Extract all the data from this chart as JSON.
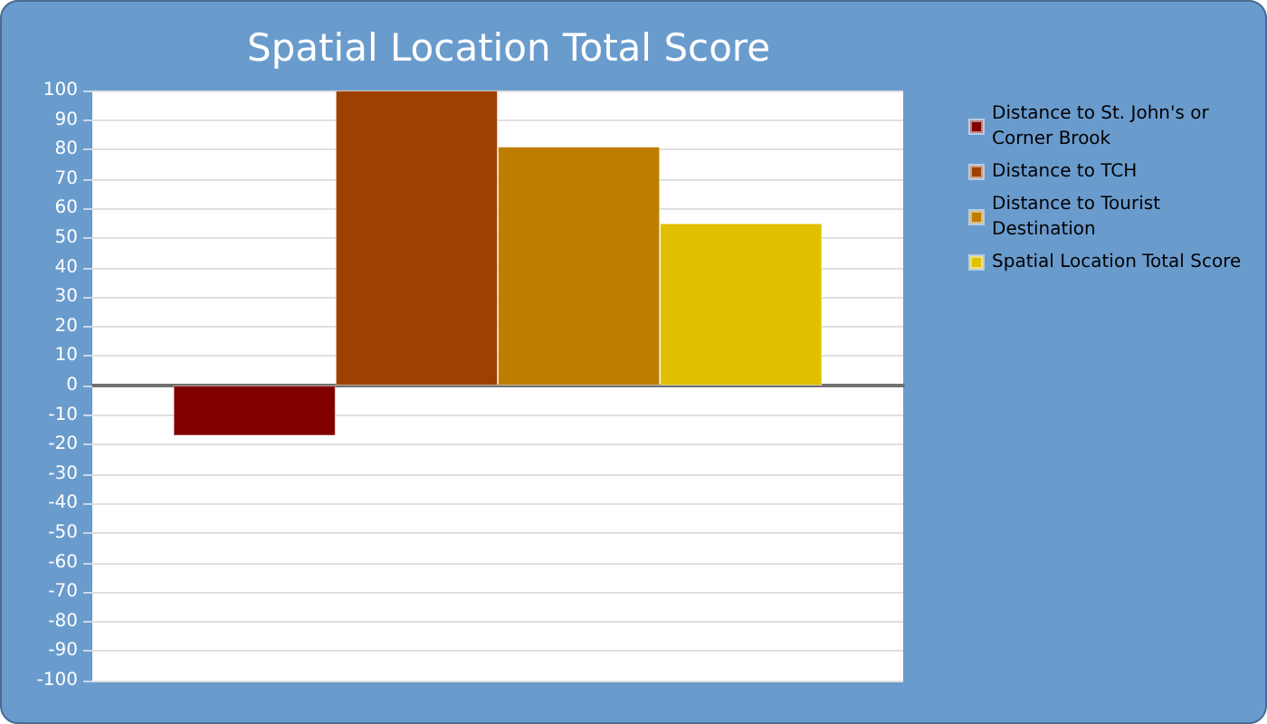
{
  "chart_data": {
    "type": "bar",
    "title": "Spatial Location Total Score",
    "categories": [
      null
    ],
    "series": [
      {
        "name": "Distance to St. John's or Corner Brook",
        "color": "#800000",
        "values": [
          -17
        ]
      },
      {
        "name": "Distance to TCH",
        "color": "#9e4000",
        "values": [
          100
        ]
      },
      {
        "name": "Distance to Tourist Destination",
        "color": "#be7f00",
        "values": [
          81
        ]
      },
      {
        "name": "Spatial Location Total Score",
        "color": "#e0c000",
        "values": [
          55
        ]
      }
    ],
    "ylim": [
      -100,
      100
    ],
    "yticks": [
      -100,
      -90,
      -80,
      -70,
      -60,
      -50,
      -40,
      -30,
      -20,
      -10,
      0,
      10,
      20,
      30,
      40,
      50,
      60,
      70,
      80,
      90,
      100
    ],
    "grid": "y",
    "legend": "right"
  }
}
